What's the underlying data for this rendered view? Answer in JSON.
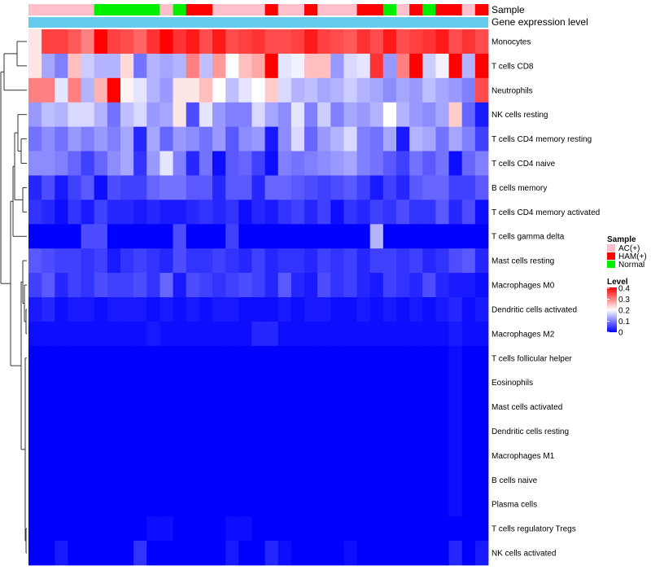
{
  "chart_data": {
    "type": "heatmap",
    "annotation_labels": {
      "sample": "Sample",
      "expression": "Gene expression level"
    },
    "column_samples": [
      "AC(+)",
      "AC(+)",
      "AC(+)",
      "AC(+)",
      "AC(+)",
      "Normal",
      "Normal",
      "Normal",
      "Normal",
      "Normal",
      "AC(+)",
      "Normal",
      "HAM(+)",
      "HAM(+)",
      "AC(+)",
      "AC(+)",
      "AC(+)",
      "AC(+)",
      "HAM(+)",
      "AC(+)",
      "AC(+)",
      "HAM(+)",
      "AC(+)",
      "AC(+)",
      "AC(+)",
      "HAM(+)",
      "HAM(+)",
      "Normal",
      "AC(+)",
      "HAM(+)",
      "Normal",
      "HAM(+)",
      "HAM(+)",
      "AC(+)",
      "HAM(+)"
    ],
    "rows": [
      "Monocytes",
      "T cells CD8",
      "Neutrophils",
      "NK cells resting",
      "T cells CD4 memory resting",
      "T cells CD4 naive",
      "B cells memory",
      "T cells CD4 memory activated",
      "T cells gamma delta",
      "Mast cells resting",
      "Macrophages M0",
      "Dendritic cells activated",
      "Macrophages M2",
      "T cells follicular helper",
      "Eosinophils",
      "Mast cells activated",
      "Dendritic cells resting",
      "Macrophages M1",
      "B cells naive",
      "Plasma cells",
      "T cells regulatory  Tregs",
      "NK cells activated"
    ],
    "values": [
      [
        0.22,
        0.35,
        0.35,
        0.33,
        0.3,
        0.4,
        0.35,
        0.34,
        0.32,
        0.36,
        0.4,
        0.36,
        0.38,
        0.34,
        0.38,
        0.34,
        0.35,
        0.36,
        0.34,
        0.34,
        0.35,
        0.38,
        0.35,
        0.34,
        0.33,
        0.36,
        0.34,
        0.38,
        0.34,
        0.35,
        0.36,
        0.38,
        0.34,
        0.36,
        0.34
      ],
      [
        0.22,
        0.13,
        0.1,
        0.25,
        0.16,
        0.14,
        0.14,
        0.23,
        0.09,
        0.14,
        0.13,
        0.14,
        0.3,
        0.15,
        0.28,
        0.2,
        0.25,
        0.27,
        0.4,
        0.18,
        0.19,
        0.25,
        0.25,
        0.12,
        0.17,
        0.18,
        0.36,
        0.12,
        0.3,
        0.4,
        0.16,
        0.19,
        0.4,
        0.14,
        0.4
      ],
      [
        0.3,
        0.3,
        0.18,
        0.3,
        0.14,
        0.26,
        0.4,
        0.21,
        0.18,
        0.14,
        0.12,
        0.22,
        0.22,
        0.25,
        0.2,
        0.15,
        0.18,
        0.2,
        0.24,
        0.17,
        0.14,
        0.15,
        0.13,
        0.14,
        0.16,
        0.14,
        0.13,
        0.11,
        0.13,
        0.12,
        0.15,
        0.13,
        0.12,
        0.1,
        0.34
      ],
      [
        0.12,
        0.15,
        0.14,
        0.17,
        0.17,
        0.14,
        0.09,
        0.15,
        0.17,
        0.12,
        0.13,
        0.22,
        0.06,
        0.18,
        0.12,
        0.1,
        0.1,
        0.17,
        0.13,
        0.11,
        0.18,
        0.1,
        0.16,
        0.1,
        0.13,
        0.12,
        0.14,
        0.2,
        0.14,
        0.12,
        0.11,
        0.13,
        0.24,
        0.08,
        0.02
      ],
      [
        0.09,
        0.11,
        0.09,
        0.12,
        0.1,
        0.12,
        0.1,
        0.13,
        0.03,
        0.13,
        0.08,
        0.12,
        0.11,
        0.09,
        0.12,
        0.07,
        0.11,
        0.12,
        0.02,
        0.11,
        0.17,
        0.08,
        0.12,
        0.14,
        0.17,
        0.1,
        0.09,
        0.13,
        0.02,
        0.14,
        0.13,
        0.09,
        0.13,
        0.1,
        0.05
      ],
      [
        0.11,
        0.11,
        0.1,
        0.08,
        0.05,
        0.08,
        0.11,
        0.13,
        0.04,
        0.12,
        0.18,
        0.1,
        0.03,
        0.09,
        0.01,
        0.07,
        0.08,
        0.05,
        0.01,
        0.1,
        0.09,
        0.1,
        0.11,
        0.12,
        0.13,
        0.1,
        0.09,
        0.07,
        0.05,
        0.09,
        0.07,
        0.09,
        0.01,
        0.08,
        0.1
      ],
      [
        0.03,
        0.06,
        0.02,
        0.05,
        0.07,
        0.01,
        0.06,
        0.05,
        0.05,
        0.08,
        0.09,
        0.09,
        0.07,
        0.07,
        0.03,
        0.07,
        0.07,
        0.03,
        0.08,
        0.08,
        0.07,
        0.06,
        0.05,
        0.06,
        0.07,
        0.05,
        0.02,
        0.05,
        0.03,
        0.07,
        0.08,
        0.08,
        0.05,
        0.05,
        0.07
      ],
      [
        0.04,
        0.03,
        0.01,
        0.04,
        0.02,
        0.05,
        0.03,
        0.03,
        0.02,
        0.03,
        0.02,
        0.02,
        0.03,
        0.04,
        0.03,
        0.04,
        0.01,
        0.03,
        0.02,
        0.04,
        0.05,
        0.03,
        0.05,
        0.01,
        0.04,
        0.03,
        0.05,
        0.04,
        0.06,
        0.04,
        0.04,
        0.07,
        0.03,
        0.06,
        0.01
      ],
      [
        0.0,
        0.0,
        0.0,
        0.0,
        0.06,
        0.06,
        0.0,
        0.0,
        0.0,
        0.0,
        0.0,
        0.06,
        0.0,
        0.0,
        0.0,
        0.05,
        0.0,
        0.0,
        0.0,
        0.0,
        0.0,
        0.0,
        0.0,
        0.0,
        0.0,
        0.0,
        0.14,
        0.0,
        0.0,
        0.0,
        0.0,
        0.0,
        0.0,
        0.0,
        0.0
      ],
      [
        0.07,
        0.06,
        0.05,
        0.05,
        0.04,
        0.05,
        0.02,
        0.04,
        0.05,
        0.04,
        0.03,
        0.06,
        0.04,
        0.04,
        0.05,
        0.04,
        0.03,
        0.05,
        0.03,
        0.04,
        0.04,
        0.03,
        0.05,
        0.04,
        0.05,
        0.03,
        0.05,
        0.05,
        0.04,
        0.05,
        0.03,
        0.04,
        0.06,
        0.07,
        0.03
      ],
      [
        0.05,
        0.07,
        0.03,
        0.05,
        0.04,
        0.06,
        0.05,
        0.05,
        0.06,
        0.04,
        0.08,
        0.02,
        0.06,
        0.05,
        0.04,
        0.05,
        0.06,
        0.05,
        0.03,
        0.07,
        0.03,
        0.02,
        0.06,
        0.04,
        0.05,
        0.03,
        0.02,
        0.05,
        0.04,
        0.03,
        0.06,
        0.03,
        0.02,
        0.02,
        0.01
      ],
      [
        0.02,
        0.03,
        0.01,
        0.02,
        0.02,
        0.01,
        0.02,
        0.02,
        0.02,
        0.01,
        0.02,
        0.01,
        0.02,
        0.01,
        0.02,
        0.02,
        0.01,
        0.01,
        0.01,
        0.02,
        0.01,
        0.02,
        0.02,
        0.01,
        0.01,
        0.02,
        0.01,
        0.02,
        0.01,
        0.02,
        0.01,
        0.02,
        0.03,
        0.01,
        0.02
      ],
      [
        0.01,
        0.01,
        0.01,
        0.01,
        0.01,
        0.01,
        0.01,
        0.01,
        0.01,
        0.02,
        0.01,
        0.01,
        0.01,
        0.01,
        0.01,
        0.01,
        0.01,
        0.03,
        0.03,
        0.01,
        0.01,
        0.01,
        0.01,
        0.01,
        0.01,
        0.01,
        0.01,
        0.01,
        0.01,
        0.01,
        0.01,
        0.01,
        0.02,
        0.01,
        0.01
      ],
      [
        0.0,
        0.0,
        0.0,
        0.0,
        0.0,
        0.0,
        0.0,
        0.0,
        0.0,
        0.0,
        0.0,
        0.0,
        0.0,
        0.0,
        0.0,
        0.0,
        0.0,
        0.0,
        0.0,
        0.0,
        0.0,
        0.0,
        0.0,
        0.0,
        0.0,
        0.0,
        0.0,
        0.0,
        0.0,
        0.0,
        0.0,
        0.0,
        0.01,
        0.0,
        0.0
      ],
      [
        0.0,
        0.0,
        0.0,
        0.0,
        0.0,
        0.0,
        0.0,
        0.0,
        0.0,
        0.0,
        0.0,
        0.0,
        0.0,
        0.0,
        0.0,
        0.0,
        0.0,
        0.0,
        0.0,
        0.0,
        0.0,
        0.0,
        0.0,
        0.0,
        0.0,
        0.0,
        0.0,
        0.0,
        0.0,
        0.0,
        0.0,
        0.0,
        0.01,
        0.0,
        0.0
      ],
      [
        0.0,
        0.0,
        0.0,
        0.0,
        0.0,
        0.0,
        0.0,
        0.0,
        0.0,
        0.0,
        0.0,
        0.0,
        0.0,
        0.0,
        0.0,
        0.0,
        0.0,
        0.0,
        0.0,
        0.0,
        0.0,
        0.0,
        0.0,
        0.0,
        0.0,
        0.0,
        0.0,
        0.0,
        0.0,
        0.0,
        0.0,
        0.0,
        0.01,
        0.0,
        0.0
      ],
      [
        0.0,
        0.0,
        0.0,
        0.0,
        0.0,
        0.0,
        0.0,
        0.0,
        0.0,
        0.0,
        0.0,
        0.0,
        0.0,
        0.0,
        0.0,
        0.0,
        0.0,
        0.0,
        0.0,
        0.0,
        0.0,
        0.0,
        0.0,
        0.0,
        0.0,
        0.0,
        0.0,
        0.0,
        0.0,
        0.0,
        0.0,
        0.0,
        0.01,
        0.0,
        0.0
      ],
      [
        0.0,
        0.0,
        0.0,
        0.0,
        0.0,
        0.0,
        0.0,
        0.0,
        0.0,
        0.0,
        0.0,
        0.0,
        0.0,
        0.0,
        0.0,
        0.0,
        0.0,
        0.0,
        0.0,
        0.0,
        0.0,
        0.0,
        0.0,
        0.0,
        0.0,
        0.0,
        0.0,
        0.0,
        0.0,
        0.0,
        0.0,
        0.0,
        0.01,
        0.0,
        0.0
      ],
      [
        0.0,
        0.0,
        0.0,
        0.0,
        0.0,
        0.0,
        0.0,
        0.0,
        0.0,
        0.0,
        0.0,
        0.0,
        0.0,
        0.0,
        0.0,
        0.0,
        0.0,
        0.0,
        0.0,
        0.0,
        0.0,
        0.0,
        0.0,
        0.0,
        0.0,
        0.0,
        0.0,
        0.0,
        0.0,
        0.0,
        0.0,
        0.0,
        0.01,
        0.0,
        0.0
      ],
      [
        0.0,
        0.0,
        0.0,
        0.0,
        0.0,
        0.0,
        0.0,
        0.0,
        0.0,
        0.0,
        0.0,
        0.0,
        0.0,
        0.0,
        0.0,
        0.0,
        0.0,
        0.0,
        0.0,
        0.0,
        0.0,
        0.0,
        0.0,
        0.0,
        0.0,
        0.0,
        0.0,
        0.0,
        0.0,
        0.0,
        0.0,
        0.0,
        0.01,
        0.0,
        0.0
      ],
      [
        0.0,
        0.0,
        0.0,
        0.0,
        0.0,
        0.0,
        0.0,
        0.0,
        0.0,
        0.01,
        0.01,
        0.0,
        0.0,
        0.0,
        0.0,
        0.01,
        0.01,
        0.0,
        0.0,
        0.0,
        0.0,
        0.0,
        0.0,
        0.0,
        0.0,
        0.0,
        0.0,
        0.0,
        0.0,
        0.0,
        0.0,
        0.0,
        0.0,
        0.0,
        0.0
      ],
      [
        0.0,
        0.0,
        0.02,
        0.0,
        0.0,
        0.0,
        0.0,
        0.0,
        0.04,
        0.0,
        0.0,
        0.0,
        0.0,
        0.0,
        0.0,
        0.02,
        0.0,
        0.0,
        0.03,
        0.01,
        0.0,
        0.0,
        0.0,
        0.0,
        0.01,
        0.0,
        0.0,
        0.0,
        0.0,
        0.0,
        0.0,
        0.0,
        0.03,
        0.0,
        0.02
      ]
    ],
    "expression_bar_color": "#66CCEE",
    "legend": {
      "sample_title": "Sample",
      "sample_items": [
        {
          "label": "AC(+)",
          "color": "#FFC0CB"
        },
        {
          "label": "HAM(+)",
          "color": "#FF0000"
        },
        {
          "label": "Normal",
          "color": "#00EE00"
        }
      ],
      "level_title": "Level",
      "level_ticks": [
        "0.4",
        "0.3",
        "0.2",
        "0.1",
        "0"
      ],
      "color_low": "#0000FF",
      "color_mid": "#FFFFFF",
      "color_high": "#FF0000",
      "value_min": 0,
      "value_mid": 0.2,
      "value_max": 0.4
    }
  }
}
